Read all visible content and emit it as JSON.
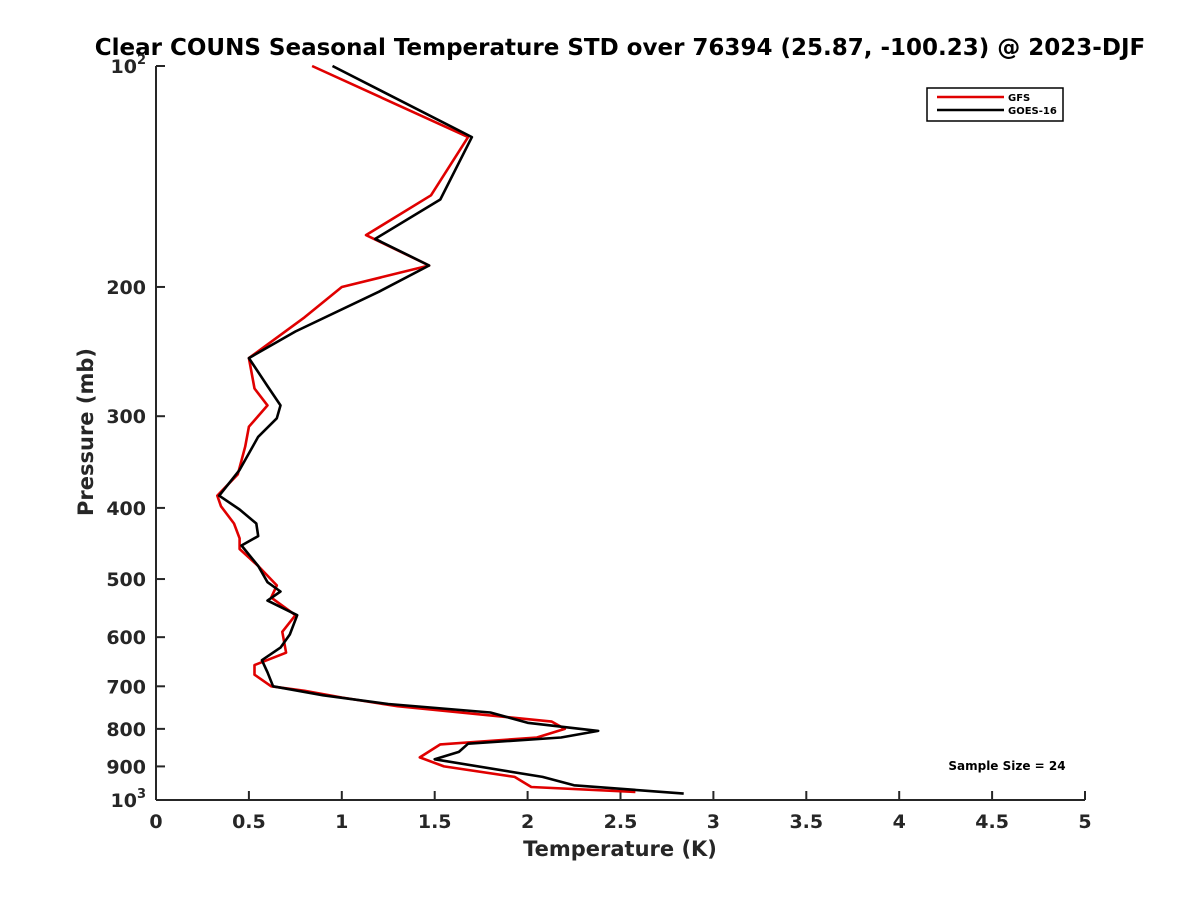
{
  "colors": {
    "gfs": "#e00000",
    "goes": "#000000",
    "axis": "#262626"
  },
  "chart_data": {
    "type": "line",
    "title": "Clear COUNS Seasonal Temperature STD over 76394 (25.87, -100.23) @ 2023-DJF",
    "xlabel": "Temperature (K)",
    "ylabel": "Pressure (mb)",
    "xlim": [
      0,
      5
    ],
    "ylim": [
      100,
      1000
    ],
    "yscale": "log",
    "y_reversed": true,
    "x_ticks": [
      0,
      0.5,
      1,
      1.5,
      2,
      2.5,
      3,
      3.5,
      4,
      4.5,
      5
    ],
    "x_tick_labels": [
      "0",
      "0.5",
      "1",
      "1.5",
      "2",
      "2.5",
      "3",
      "3.5",
      "4",
      "4.5",
      "5"
    ],
    "y_ticks": [
      100,
      200,
      300,
      400,
      500,
      600,
      700,
      800,
      900,
      1000
    ],
    "y_tick_labels": [
      {
        "base": "10",
        "exp": "2"
      },
      {
        "base": "200",
        "exp": ""
      },
      {
        "base": "300",
        "exp": ""
      },
      {
        "base": "400",
        "exp": ""
      },
      {
        "base": "500",
        "exp": ""
      },
      {
        "base": "600",
        "exp": ""
      },
      {
        "base": "700",
        "exp": ""
      },
      {
        "base": "800",
        "exp": ""
      },
      {
        "base": "900",
        "exp": ""
      },
      {
        "base": "10",
        "exp": "3"
      }
    ],
    "legend_position": "top-right",
    "annotation": "Sample Size = 24",
    "series": [
      {
        "name": "GFS",
        "color_key": "gfs",
        "points": [
          [
            0.84,
            100
          ],
          [
            1.68,
            125
          ],
          [
            1.48,
            150
          ],
          [
            1.13,
            170
          ],
          [
            1.47,
            187
          ],
          [
            1.0,
            200
          ],
          [
            0.8,
            220
          ],
          [
            0.5,
            250
          ],
          [
            0.53,
            275
          ],
          [
            0.6,
            290
          ],
          [
            0.5,
            310
          ],
          [
            0.48,
            330
          ],
          [
            0.44,
            360
          ],
          [
            0.33,
            385
          ],
          [
            0.35,
            398
          ],
          [
            0.42,
            420
          ],
          [
            0.45,
            440
          ],
          [
            0.45,
            455
          ],
          [
            0.55,
            480
          ],
          [
            0.65,
            510
          ],
          [
            0.62,
            530
          ],
          [
            0.75,
            560
          ],
          [
            0.68,
            590
          ],
          [
            0.7,
            630
          ],
          [
            0.53,
            655
          ],
          [
            0.53,
            675
          ],
          [
            0.62,
            700
          ],
          [
            0.8,
            710
          ],
          [
            1.0,
            725
          ],
          [
            1.3,
            745
          ],
          [
            2.13,
            782
          ],
          [
            2.2,
            800
          ],
          [
            2.05,
            822
          ],
          [
            1.53,
            840
          ],
          [
            1.42,
            875
          ],
          [
            1.55,
            900
          ],
          [
            1.93,
            930
          ],
          [
            2.02,
            960
          ],
          [
            2.58,
            975
          ]
        ]
      },
      {
        "name": "GOES-16",
        "color_key": "goes",
        "points": [
          [
            0.95,
            100
          ],
          [
            1.7,
            125
          ],
          [
            1.53,
            152
          ],
          [
            1.18,
            172
          ],
          [
            1.47,
            187
          ],
          [
            1.2,
            203
          ],
          [
            0.75,
            230
          ],
          [
            0.5,
            250
          ],
          [
            0.6,
            273
          ],
          [
            0.67,
            290
          ],
          [
            0.65,
            302
          ],
          [
            0.55,
            320
          ],
          [
            0.45,
            355
          ],
          [
            0.34,
            385
          ],
          [
            0.45,
            402
          ],
          [
            0.54,
            420
          ],
          [
            0.55,
            437
          ],
          [
            0.46,
            450
          ],
          [
            0.55,
            480
          ],
          [
            0.6,
            505
          ],
          [
            0.67,
            520
          ],
          [
            0.6,
            535
          ],
          [
            0.76,
            560
          ],
          [
            0.72,
            595
          ],
          [
            0.67,
            620
          ],
          [
            0.57,
            645
          ],
          [
            0.6,
            670
          ],
          [
            0.63,
            700
          ],
          [
            0.9,
            720
          ],
          [
            1.25,
            740
          ],
          [
            1.8,
            760
          ],
          [
            2.0,
            785
          ],
          [
            2.38,
            805
          ],
          [
            2.18,
            822
          ],
          [
            1.68,
            838
          ],
          [
            1.63,
            860
          ],
          [
            1.5,
            880
          ],
          [
            2.08,
            930
          ],
          [
            2.25,
            955
          ],
          [
            2.84,
            980
          ]
        ]
      }
    ]
  }
}
